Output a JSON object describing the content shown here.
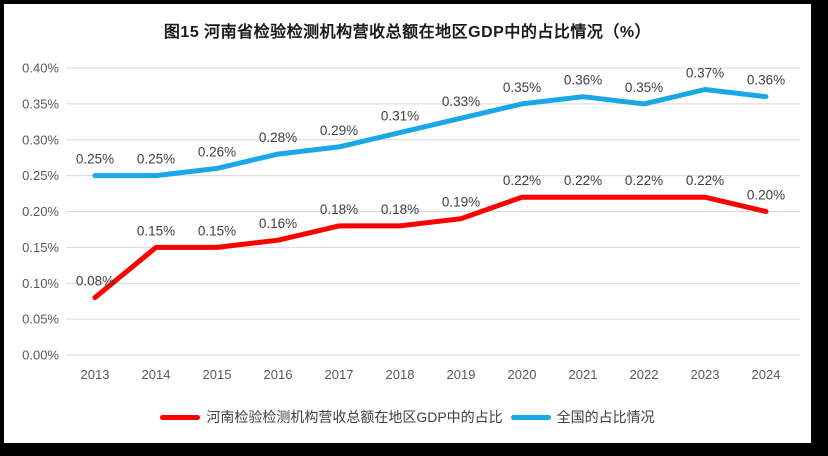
{
  "title": "图15  河南省检验检测机构营收总额在地区GDP中的占比情况（%）",
  "colors": {
    "henan_series": "#ff0000",
    "national_series": "#1aa7e8",
    "gridline": "#d9d9d9",
    "tick_label": "#595959",
    "data_label": "#404040",
    "frame_border": "#000000"
  },
  "chart_data": {
    "type": "line",
    "title": "图15  河南省检验检测机构营收总额在地区GDP中的占比情况（%）",
    "categories": [
      "2013",
      "2014",
      "2015",
      "2016",
      "2017",
      "2018",
      "2019",
      "2020",
      "2021",
      "2022",
      "2023",
      "2024"
    ],
    "series": [
      {
        "name": "河南检验检测机构营收总额在地区GDP中的占比",
        "color": "#ff0000",
        "values": [
          0.08,
          0.15,
          0.15,
          0.16,
          0.18,
          0.18,
          0.19,
          0.22,
          0.22,
          0.22,
          0.22,
          0.2
        ],
        "labels": [
          "0.08%",
          "0.15%",
          "0.15%",
          "0.16%",
          "0.18%",
          "0.18%",
          "0.19%",
          "0.22%",
          "0.22%",
          "0.22%",
          "0.22%",
          "0.20%"
        ]
      },
      {
        "name": "全国的占比情况",
        "color": "#1aa7e8",
        "values": [
          0.25,
          0.25,
          0.26,
          0.28,
          0.29,
          0.31,
          0.33,
          0.35,
          0.36,
          0.35,
          0.37,
          0.36
        ],
        "labels": [
          "0.25%",
          "0.25%",
          "0.26%",
          "0.28%",
          "0.29%",
          "0.31%",
          "0.33%",
          "0.35%",
          "0.36%",
          "0.35%",
          "0.37%",
          "0.36%"
        ]
      }
    ],
    "xlabel": "",
    "ylabel": "",
    "ylim": [
      0,
      0.4
    ],
    "ytick_step": 0.05,
    "ytick_labels": [
      "0.00%",
      "0.05%",
      "0.10%",
      "0.15%",
      "0.20%",
      "0.25%",
      "0.30%",
      "0.35%",
      "0.40%"
    ],
    "grid": true,
    "legend_position": "bottom",
    "legend": [
      "河南检验检测机构营收总额在地区GDP中的占比",
      "全国的占比情况"
    ]
  }
}
